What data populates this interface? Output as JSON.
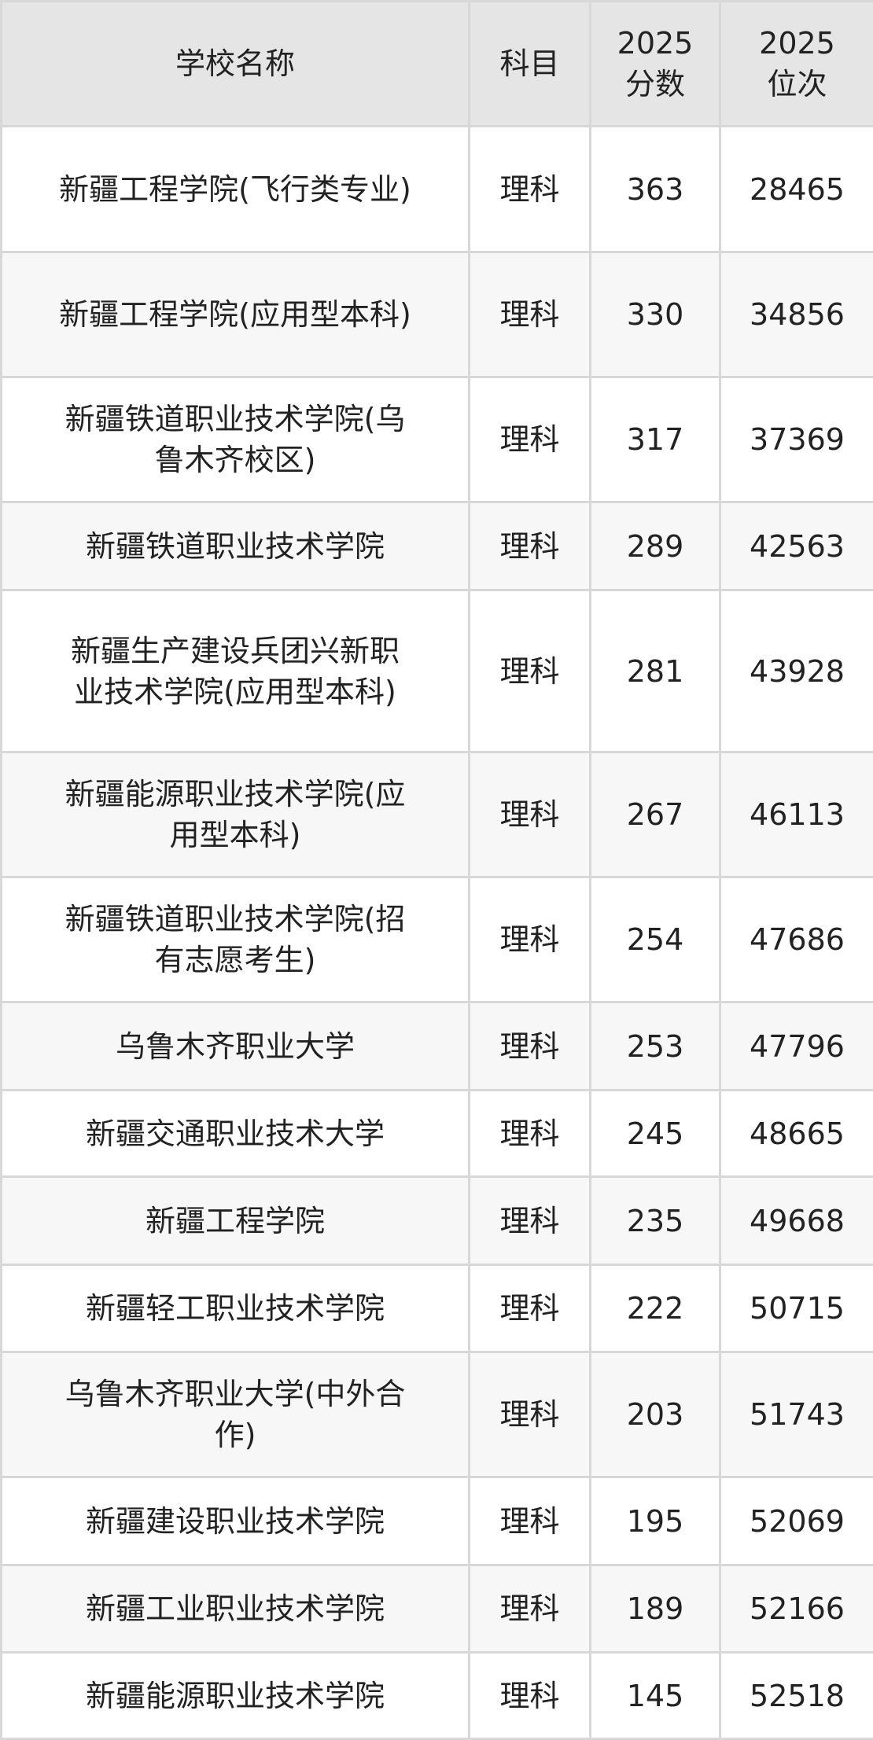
{
  "table": {
    "headers": [
      "学校名称",
      "科目",
      "2025\n分数",
      "2025\n位次"
    ],
    "header_lines": [
      [
        "学校名称"
      ],
      [
        "科目"
      ],
      [
        "2025",
        "分数"
      ],
      [
        "2025",
        "位次"
      ]
    ],
    "rows": [
      {
        "name": "新疆工程学院(飞行类专业)",
        "subject": "理科",
        "score": "363",
        "rank": "28465"
      },
      {
        "name": "新疆工程学院(应用型本科)",
        "subject": "理科",
        "score": "330",
        "rank": "34856"
      },
      {
        "name": "新疆铁道职业技术学院(乌鲁木齐校区)",
        "subject": "理科",
        "score": "317",
        "rank": "37369"
      },
      {
        "name": "新疆铁道职业技术学院",
        "subject": "理科",
        "score": "289",
        "rank": "42563"
      },
      {
        "name": "新疆生产建设兵团兴新职业技术学院(应用型本科)",
        "subject": "理科",
        "score": "281",
        "rank": "43928"
      },
      {
        "name": "新疆能源职业技术学院(应用型本科)",
        "subject": "理科",
        "score": "267",
        "rank": "46113"
      },
      {
        "name": "新疆铁道职业技术学院(招有志愿考生)",
        "subject": "理科",
        "score": "254",
        "rank": "47686"
      },
      {
        "name": "乌鲁木齐职业大学",
        "subject": "理科",
        "score": "253",
        "rank": "47796"
      },
      {
        "name": "新疆交通职业技术大学",
        "subject": "理科",
        "score": "245",
        "rank": "48665"
      },
      {
        "name": "新疆工程学院",
        "subject": "理科",
        "score": "235",
        "rank": "49668"
      },
      {
        "name": "新疆轻工职业技术学院",
        "subject": "理科",
        "score": "222",
        "rank": "50715"
      },
      {
        "name": "乌鲁木齐职业大学(中外合作)",
        "subject": "理科",
        "score": "203",
        "rank": "51743"
      },
      {
        "name": "新疆建设职业技术学院",
        "subject": "理科",
        "score": "195",
        "rank": "52069"
      },
      {
        "name": "新疆工业职业技术学院",
        "subject": "理科",
        "score": "189",
        "rank": "52166"
      },
      {
        "name": "新疆能源职业技术学院",
        "subject": "理科",
        "score": "145",
        "rank": "52518"
      }
    ]
  },
  "colors": {
    "header_bg": "#e5e5e5",
    "alt_row_bg": "#f7f7f7",
    "border": "#d8d8d8",
    "text": "#222222"
  }
}
